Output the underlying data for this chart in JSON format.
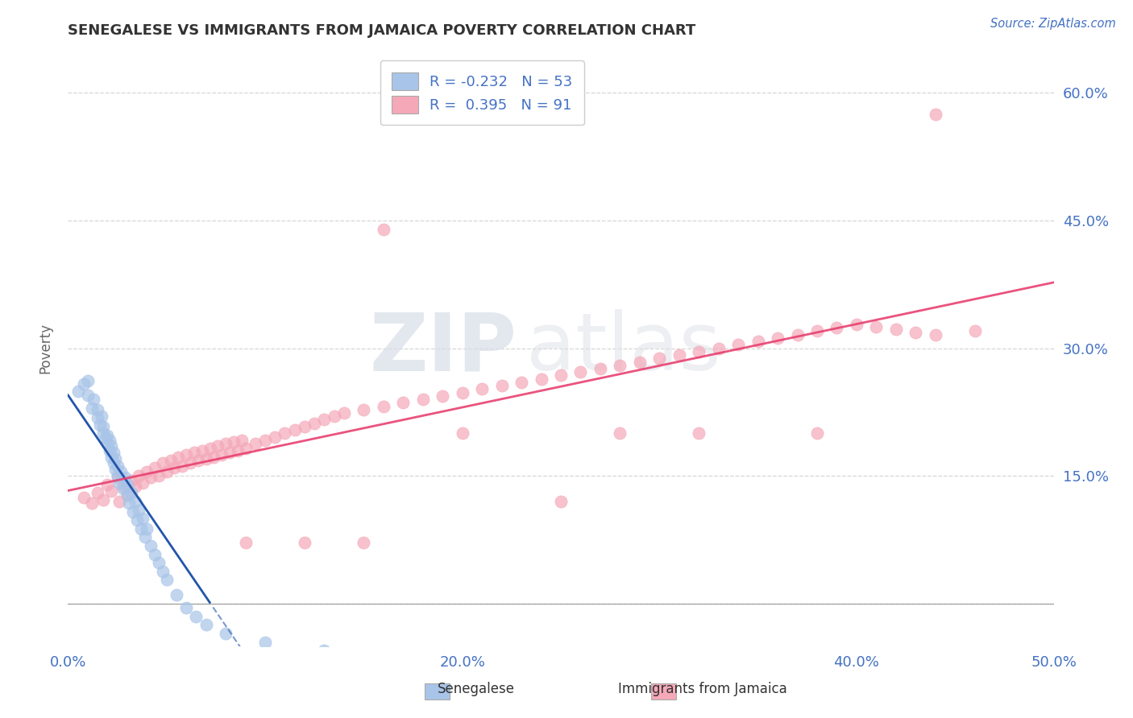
{
  "title": "SENEGALESE VS IMMIGRANTS FROM JAMAICA POVERTY CORRELATION CHART",
  "source": "Source: ZipAtlas.com",
  "ylabel": "Poverty",
  "xlim": [
    0.0,
    0.5
  ],
  "ylim": [
    -0.05,
    0.65
  ],
  "yticks": [
    0.0,
    0.15,
    0.3,
    0.45,
    0.6
  ],
  "ytick_labels": [
    "",
    "15.0%",
    "30.0%",
    "45.0%",
    "60.0%"
  ],
  "xticks": [
    0.0,
    0.1,
    0.2,
    0.3,
    0.4,
    0.5
  ],
  "xtick_labels": [
    "0.0%",
    "",
    "20.0%",
    "",
    "40.0%",
    "50.0%"
  ],
  "senegalese_color": "#a8c4e8",
  "jamaica_color": "#f4a8b8",
  "trend_blue_color": "#2255aa",
  "trend_pink_color": "#e84070",
  "R_senegalese": -0.232,
  "N_senegalese": 53,
  "R_jamaica": 0.395,
  "N_jamaica": 91,
  "legend_label_0": "Senegalese",
  "legend_label_1": "Immigrants from Jamaica",
  "title_color": "#333333",
  "axis_color": "#4472C4",
  "background_color": "#ffffff",
  "grid_color": "#cccccc",
  "senegalese_x": [
    0.005,
    0.008,
    0.01,
    0.01,
    0.012,
    0.013,
    0.015,
    0.015,
    0.016,
    0.017,
    0.018,
    0.018,
    0.019,
    0.02,
    0.02,
    0.021,
    0.021,
    0.022,
    0.022,
    0.023,
    0.023,
    0.024,
    0.024,
    0.025,
    0.025,
    0.026,
    0.027,
    0.028,
    0.029,
    0.03,
    0.03,
    0.031,
    0.032,
    0.033,
    0.034,
    0.035,
    0.036,
    0.037,
    0.038,
    0.039,
    0.04,
    0.042,
    0.044,
    0.046,
    0.048,
    0.05,
    0.055,
    0.06,
    0.065,
    0.07,
    0.08,
    0.1,
    0.13
  ],
  "senegalese_y": [
    0.25,
    0.258,
    0.245,
    0.262,
    0.23,
    0.24,
    0.218,
    0.228,
    0.21,
    0.22,
    0.2,
    0.208,
    0.195,
    0.188,
    0.198,
    0.18,
    0.192,
    0.172,
    0.185,
    0.165,
    0.178,
    0.158,
    0.17,
    0.15,
    0.162,
    0.142,
    0.155,
    0.135,
    0.148,
    0.128,
    0.14,
    0.118,
    0.13,
    0.108,
    0.12,
    0.098,
    0.11,
    0.088,
    0.1,
    0.078,
    0.088,
    0.068,
    0.058,
    0.048,
    0.038,
    0.028,
    0.01,
    -0.005,
    -0.015,
    -0.025,
    -0.035,
    -0.045,
    -0.055
  ],
  "jamaica_x": [
    0.008,
    0.012,
    0.015,
    0.018,
    0.02,
    0.022,
    0.025,
    0.026,
    0.028,
    0.03,
    0.032,
    0.034,
    0.036,
    0.038,
    0.04,
    0.042,
    0.044,
    0.046,
    0.048,
    0.05,
    0.052,
    0.054,
    0.056,
    0.058,
    0.06,
    0.062,
    0.064,
    0.066,
    0.068,
    0.07,
    0.072,
    0.074,
    0.076,
    0.078,
    0.08,
    0.082,
    0.084,
    0.086,
    0.088,
    0.09,
    0.095,
    0.1,
    0.105,
    0.11,
    0.115,
    0.12,
    0.125,
    0.13,
    0.135,
    0.14,
    0.15,
    0.16,
    0.17,
    0.18,
    0.19,
    0.2,
    0.21,
    0.22,
    0.23,
    0.24,
    0.25,
    0.26,
    0.27,
    0.28,
    0.29,
    0.3,
    0.31,
    0.32,
    0.33,
    0.34,
    0.35,
    0.36,
    0.37,
    0.38,
    0.39,
    0.4,
    0.41,
    0.42,
    0.43,
    0.44,
    0.16,
    0.09,
    0.2,
    0.28,
    0.38,
    0.46,
    0.12,
    0.25,
    0.32,
    0.15,
    0.44
  ],
  "jamaica_y": [
    0.125,
    0.118,
    0.13,
    0.122,
    0.14,
    0.132,
    0.148,
    0.12,
    0.138,
    0.128,
    0.145,
    0.138,
    0.15,
    0.142,
    0.155,
    0.148,
    0.16,
    0.15,
    0.165,
    0.155,
    0.168,
    0.16,
    0.172,
    0.162,
    0.175,
    0.165,
    0.178,
    0.168,
    0.18,
    0.17,
    0.182,
    0.172,
    0.185,
    0.175,
    0.188,
    0.178,
    0.19,
    0.18,
    0.192,
    0.182,
    0.188,
    0.192,
    0.196,
    0.2,
    0.204,
    0.208,
    0.212,
    0.216,
    0.22,
    0.224,
    0.228,
    0.232,
    0.236,
    0.24,
    0.244,
    0.248,
    0.252,
    0.256,
    0.26,
    0.264,
    0.268,
    0.272,
    0.276,
    0.28,
    0.284,
    0.288,
    0.292,
    0.296,
    0.3,
    0.304,
    0.308,
    0.312,
    0.316,
    0.32,
    0.324,
    0.328,
    0.325,
    0.322,
    0.319,
    0.316,
    0.44,
    0.072,
    0.2,
    0.2,
    0.2,
    0.32,
    0.072,
    0.12,
    0.2,
    0.072,
    0.575
  ]
}
